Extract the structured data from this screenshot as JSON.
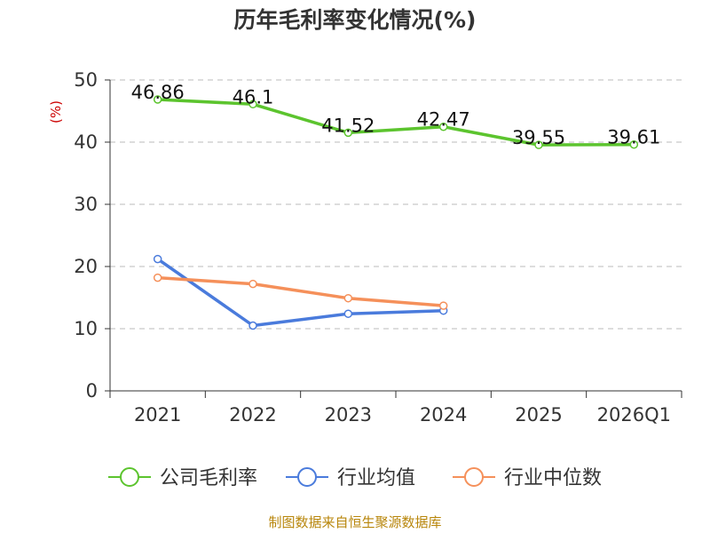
{
  "chart_data": {
    "type": "line",
    "title": "历年毛利率变化情况(%)",
    "ylabel": "(%)",
    "xlabel": "",
    "categories": [
      "2021",
      "2022",
      "2023",
      "2024",
      "2025",
      "2026Q1"
    ],
    "ylim": [
      0,
      50
    ],
    "yticks": [
      0,
      10,
      20,
      30,
      40,
      50
    ],
    "grid": true,
    "legend_position": "bottom",
    "series": [
      {
        "name": "公司毛利率",
        "color": "#5cc42e",
        "values": [
          46.86,
          46.1,
          41.52,
          42.47,
          39.55,
          39.61
        ],
        "data_labels": [
          "46.86",
          "46.1",
          "41.52",
          "42.47",
          "39.55",
          "39.61"
        ]
      },
      {
        "name": "行业均值",
        "color": "#4a7bdc",
        "values": [
          21.2,
          10.5,
          12.4,
          12.9,
          null,
          null
        ]
      },
      {
        "name": "行业中位数",
        "color": "#f5905a",
        "values": [
          18.2,
          17.2,
          14.9,
          13.7,
          null,
          null
        ]
      }
    ]
  },
  "source_note": "制图数据来自恒生聚源数据库"
}
